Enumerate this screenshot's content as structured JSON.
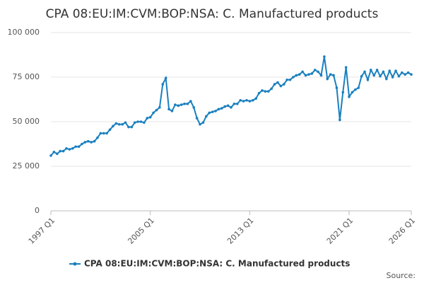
{
  "chart_data": {
    "type": "line",
    "title": "CPA 08:EU:IM:CVM:BOP:NSA: C. Manufactured products",
    "source": "Source:",
    "categories": [
      "1997 Q1",
      null,
      null,
      null,
      null,
      null,
      null,
      null,
      null,
      null,
      null,
      null,
      null,
      null,
      null,
      null,
      null,
      null,
      null,
      null,
      null,
      null,
      null,
      null,
      null,
      null,
      null,
      null,
      null,
      null,
      null,
      null,
      "2005 Q1",
      null,
      null,
      null,
      null,
      null,
      null,
      null,
      null,
      null,
      null,
      null,
      null,
      null,
      null,
      null,
      null,
      null,
      null,
      null,
      null,
      null,
      null,
      null,
      null,
      null,
      null,
      null,
      null,
      null,
      null,
      null,
      "2013 Q1",
      null,
      null,
      null,
      null,
      null,
      null,
      null,
      null,
      null,
      null,
      null,
      null,
      null,
      null,
      null,
      null,
      null,
      null,
      null,
      null,
      null,
      null,
      null,
      null,
      null,
      null,
      null,
      null,
      null,
      null,
      null,
      "2021 Q1",
      null,
      null,
      null,
      null,
      null,
      null,
      null,
      null,
      null,
      null,
      null,
      null,
      null,
      null,
      null,
      null,
      null,
      null,
      null,
      "2026 Q1"
    ],
    "series": [
      {
        "name": "CPA 08:EU:IM:CVM:BOP:NSA: C. Manufactured products",
        "color": "#1a80bf",
        "values": [
          31000,
          33000,
          32000,
          33500,
          33500,
          35000,
          34500,
          35000,
          36000,
          36000,
          37500,
          38500,
          39000,
          38500,
          39000,
          41000,
          43500,
          43500,
          43500,
          45500,
          47500,
          49000,
          48500,
          48500,
          49500,
          47000,
          47000,
          49500,
          50000,
          50000,
          49500,
          52000,
          52500,
          55000,
          56500,
          58000,
          71000,
          74500,
          57000,
          56000,
          59500,
          59000,
          59500,
          60000,
          60000,
          61500,
          58000,
          52000,
          48500,
          49500,
          53000,
          55000,
          55500,
          56000,
          57000,
          57500,
          58500,
          59000,
          58000,
          60000,
          60000,
          62000,
          61500,
          62000,
          61500,
          62000,
          63000,
          66000,
          67500,
          67000,
          67000,
          68500,
          71000,
          72000,
          70000,
          71000,
          73500,
          73500,
          75000,
          76000,
          76500,
          78000,
          76000,
          76500,
          77000,
          79000,
          78000,
          76000,
          86500,
          74000,
          76500,
          76000,
          69000,
          51000,
          66500,
          80500,
          64000,
          66500,
          68000,
          69000,
          75500,
          78000,
          73500,
          79000,
          76000,
          79000,
          75500,
          78000,
          74000,
          78500,
          75000,
          78500,
          75500,
          77500,
          76500,
          77500,
          76500
        ]
      }
    ],
    "ylim": [
      0,
      100000
    ],
    "yticks": [
      0,
      {
        "value": 25000,
        "label": "25 000"
      },
      {
        "value": 50000,
        "label": "50 000"
      },
      {
        "value": 75000,
        "label": "75 000"
      },
      {
        "value": 100000,
        "label": "100 000"
      }
    ],
    "grid": true
  }
}
